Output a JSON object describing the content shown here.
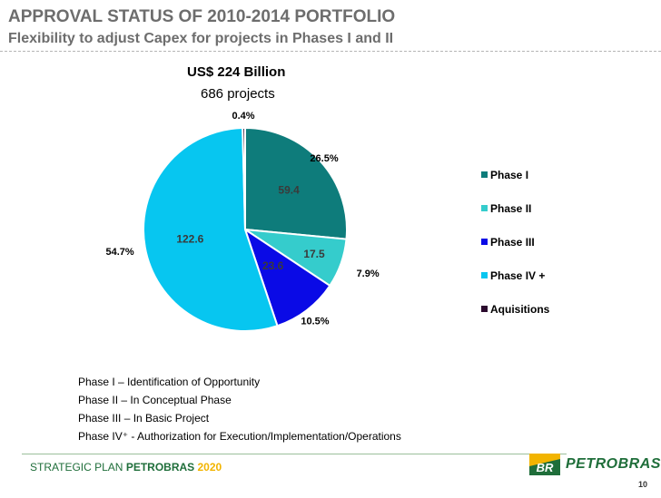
{
  "header": {
    "title": "APPROVAL STATUS OF 2010-2014 PORTFOLIO",
    "subtitle": "Flexibility to adjust Capex for projects in Phases I and II"
  },
  "chart_data": {
    "type": "pie",
    "title": "US$ 224 Billion",
    "subtitle": "686 projects",
    "series": [
      {
        "name": "Phase I",
        "value": 59.4,
        "value_label": "59.4",
        "percent_label": "26.5%",
        "color": "#0e7c7b"
      },
      {
        "name": "Phase II",
        "value": 17.5,
        "value_label": "17.5",
        "percent_label": "7.9%",
        "color": "#35cccc"
      },
      {
        "name": "Phase III",
        "value": 23.6,
        "value_label": "23.6",
        "percent_label": "10.5%",
        "color": "#0a0ae6"
      },
      {
        "name": "Phase IV +",
        "value": 122.6,
        "value_label": "122.6",
        "percent_label": "54.7%",
        "color": "#07c6f0"
      },
      {
        "name": "Aquisitions",
        "value": 0.9,
        "value_label": "",
        "percent_label": "0.4%",
        "color": "#2b0a2e"
      }
    ],
    "legend_position": "right"
  },
  "definitions": [
    "Phase I – Identification of Opportunity",
    "Phase II – In Conceptual Phase",
    "Phase III – In Basic Project",
    "Phase IV⁺ - Authorization for Execution/Implementation/Operations"
  ],
  "footer": {
    "plan_prefix": "STRATEGIC PLAN",
    "brand": "PETROBRAS",
    "year": "2020",
    "logo_mark": "BR",
    "logo_text": "PETROBRAS",
    "page_number": "10"
  },
  "colors": {
    "title": "#6d6d6d",
    "brand_green": "#1f6e3a",
    "brand_yellow": "#f2b400"
  }
}
